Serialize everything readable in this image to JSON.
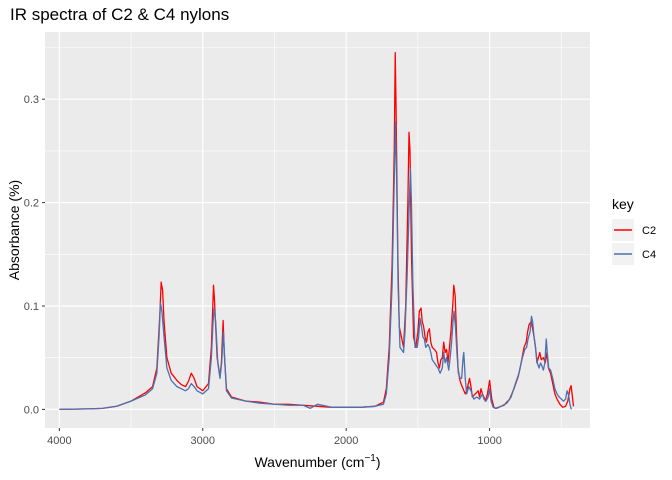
{
  "chart_data": {
    "type": "line",
    "title": "IR spectra of C2 & C4 nylons",
    "xlabel": "Wavenumber (cm",
    "xlabel_superscript": "−1",
    "xlabel_suffix": ")",
    "ylabel": "Absorbance (%)",
    "x_reversed": true,
    "xlim": [
      4100,
      300
    ],
    "ylim": [
      -0.018,
      0.365
    ],
    "x_ticks": [
      4000,
      3000,
      2000,
      1000
    ],
    "x_tick_labels": [
      "4000",
      "3000",
      "2000",
      "1000"
    ],
    "x_minor_ticks": [
      3500,
      2500,
      1500,
      500
    ],
    "y_ticks": [
      0.0,
      0.1,
      0.2,
      0.3
    ],
    "y_tick_labels": [
      "0.0",
      "0.1",
      "0.2",
      "0.3"
    ],
    "y_minor_ticks": [
      0.05,
      0.15,
      0.25,
      0.35
    ],
    "grid": true,
    "legend": {
      "title": "key",
      "position": "right"
    },
    "colors": {
      "panel": "#EBEBEB",
      "grid": "#FFFFFF",
      "axis_text": "#4D4D4D"
    },
    "series": [
      {
        "name": "C2",
        "color": "#FF0000",
        "points": [
          [
            4000,
            0.0
          ],
          [
            3800,
            0.0005
          ],
          [
            3700,
            0.001
          ],
          [
            3600,
            0.003
          ],
          [
            3500,
            0.008
          ],
          [
            3450,
            0.012
          ],
          [
            3400,
            0.016
          ],
          [
            3350,
            0.022
          ],
          [
            3320,
            0.04
          ],
          [
            3300,
            0.09
          ],
          [
            3290,
            0.123
          ],
          [
            3280,
            0.115
          ],
          [
            3270,
            0.085
          ],
          [
            3250,
            0.05
          ],
          [
            3220,
            0.035
          ],
          [
            3180,
            0.028
          ],
          [
            3150,
            0.024
          ],
          [
            3120,
            0.022
          ],
          [
            3100,
            0.027
          ],
          [
            3080,
            0.035
          ],
          [
            3060,
            0.03
          ],
          [
            3040,
            0.022
          ],
          [
            3000,
            0.018
          ],
          [
            2960,
            0.025
          ],
          [
            2940,
            0.06
          ],
          [
            2930,
            0.1
          ],
          [
            2925,
            0.12
          ],
          [
            2918,
            0.105
          ],
          [
            2900,
            0.05
          ],
          [
            2880,
            0.032
          ],
          [
            2870,
            0.045
          ],
          [
            2858,
            0.086
          ],
          [
            2850,
            0.055
          ],
          [
            2835,
            0.02
          ],
          [
            2800,
            0.012
          ],
          [
            2700,
            0.008
          ],
          [
            2600,
            0.007
          ],
          [
            2500,
            0.005
          ],
          [
            2400,
            0.005
          ],
          [
            2300,
            0.004
          ],
          [
            2200,
            0.003
          ],
          [
            2100,
            0.002
          ],
          [
            2000,
            0.002
          ],
          [
            1900,
            0.002
          ],
          [
            1800,
            0.003
          ],
          [
            1740,
            0.007
          ],
          [
            1720,
            0.02
          ],
          [
            1700,
            0.06
          ],
          [
            1680,
            0.14
          ],
          [
            1665,
            0.25
          ],
          [
            1658,
            0.345
          ],
          [
            1652,
            0.29
          ],
          [
            1640,
            0.15
          ],
          [
            1630,
            0.08
          ],
          [
            1600,
            0.06
          ],
          [
            1585,
            0.1
          ],
          [
            1570,
            0.2
          ],
          [
            1562,
            0.268
          ],
          [
            1555,
            0.25
          ],
          [
            1545,
            0.15
          ],
          [
            1530,
            0.07
          ],
          [
            1515,
            0.06
          ],
          [
            1500,
            0.075
          ],
          [
            1490,
            0.095
          ],
          [
            1478,
            0.098
          ],
          [
            1470,
            0.085
          ],
          [
            1460,
            0.08
          ],
          [
            1450,
            0.07
          ],
          [
            1440,
            0.065
          ],
          [
            1430,
            0.075
          ],
          [
            1420,
            0.078
          ],
          [
            1410,
            0.065
          ],
          [
            1400,
            0.06
          ],
          [
            1385,
            0.058
          ],
          [
            1370,
            0.055
          ],
          [
            1360,
            0.045
          ],
          [
            1350,
            0.04
          ],
          [
            1340,
            0.048
          ],
          [
            1330,
            0.05
          ],
          [
            1320,
            0.065
          ],
          [
            1310,
            0.055
          ],
          [
            1300,
            0.058
          ],
          [
            1290,
            0.045
          ],
          [
            1280,
            0.06
          ],
          [
            1270,
            0.075
          ],
          [
            1255,
            0.105
          ],
          [
            1250,
            0.12
          ],
          [
            1240,
            0.11
          ],
          [
            1230,
            0.07
          ],
          [
            1220,
            0.04
          ],
          [
            1210,
            0.03
          ],
          [
            1200,
            0.025
          ],
          [
            1185,
            0.02
          ],
          [
            1170,
            0.015
          ],
          [
            1160,
            0.018
          ],
          [
            1140,
            0.03
          ],
          [
            1130,
            0.022
          ],
          [
            1120,
            0.012
          ],
          [
            1100,
            0.015
          ],
          [
            1080,
            0.018
          ],
          [
            1070,
            0.012
          ],
          [
            1060,
            0.02
          ],
          [
            1050,
            0.015
          ],
          [
            1040,
            0.012
          ],
          [
            1030,
            0.008
          ],
          [
            1015,
            0.015
          ],
          [
            1000,
            0.028
          ],
          [
            985,
            0.01
          ],
          [
            970,
            0.002
          ],
          [
            960,
            0.001
          ],
          [
            940,
            0.002
          ],
          [
            900,
            0.004
          ],
          [
            860,
            0.01
          ],
          [
            830,
            0.02
          ],
          [
            800,
            0.032
          ],
          [
            780,
            0.045
          ],
          [
            760,
            0.06
          ],
          [
            745,
            0.065
          ],
          [
            735,
            0.075
          ],
          [
            725,
            0.082
          ],
          [
            710,
            0.085
          ],
          [
            700,
            0.078
          ],
          [
            690,
            0.07
          ],
          [
            680,
            0.06
          ],
          [
            670,
            0.045
          ],
          [
            660,
            0.05
          ],
          [
            650,
            0.055
          ],
          [
            640,
            0.048
          ],
          [
            625,
            0.05
          ],
          [
            612,
            0.045
          ],
          [
            600,
            0.055
          ],
          [
            590,
            0.04
          ],
          [
            575,
            0.035
          ],
          [
            560,
            0.025
          ],
          [
            545,
            0.015
          ],
          [
            530,
            0.01
          ],
          [
            510,
            0.005
          ],
          [
            490,
            0.002
          ],
          [
            470,
            0.003
          ],
          [
            455,
            0.008
          ],
          [
            440,
            0.02
          ],
          [
            432,
            0.023
          ],
          [
            425,
            0.015
          ],
          [
            415,
            0.003
          ]
        ]
      },
      {
        "name": "C4",
        "color": "#4A72B0",
        "points": [
          [
            4000,
            0.0
          ],
          [
            3800,
            0.0005
          ],
          [
            3700,
            0.001
          ],
          [
            3600,
            0.003
          ],
          [
            3500,
            0.008
          ],
          [
            3450,
            0.011
          ],
          [
            3400,
            0.014
          ],
          [
            3350,
            0.02
          ],
          [
            3320,
            0.035
          ],
          [
            3305,
            0.07
          ],
          [
            3295,
            0.103
          ],
          [
            3285,
            0.095
          ],
          [
            3270,
            0.07
          ],
          [
            3250,
            0.04
          ],
          [
            3220,
            0.028
          ],
          [
            3180,
            0.022
          ],
          [
            3150,
            0.02
          ],
          [
            3120,
            0.018
          ],
          [
            3100,
            0.02
          ],
          [
            3080,
            0.025
          ],
          [
            3060,
            0.022
          ],
          [
            3040,
            0.018
          ],
          [
            3000,
            0.015
          ],
          [
            2960,
            0.02
          ],
          [
            2940,
            0.05
          ],
          [
            2928,
            0.085
          ],
          [
            2920,
            0.098
          ],
          [
            2910,
            0.085
          ],
          [
            2895,
            0.045
          ],
          [
            2880,
            0.03
          ],
          [
            2868,
            0.045
          ],
          [
            2856,
            0.075
          ],
          [
            2848,
            0.05
          ],
          [
            2835,
            0.018
          ],
          [
            2800,
            0.011
          ],
          [
            2700,
            0.008
          ],
          [
            2600,
            0.006
          ],
          [
            2500,
            0.005
          ],
          [
            2400,
            0.004
          ],
          [
            2300,
            0.004
          ],
          [
            2250,
            0.001
          ],
          [
            2200,
            0.005
          ],
          [
            2100,
            0.002
          ],
          [
            2000,
            0.002
          ],
          [
            1900,
            0.002
          ],
          [
            1800,
            0.003
          ],
          [
            1740,
            0.005
          ],
          [
            1720,
            0.015
          ],
          [
            1700,
            0.05
          ],
          [
            1680,
            0.12
          ],
          [
            1665,
            0.22
          ],
          [
            1656,
            0.278
          ],
          [
            1648,
            0.22
          ],
          [
            1638,
            0.12
          ],
          [
            1625,
            0.06
          ],
          [
            1600,
            0.055
          ],
          [
            1590,
            0.075
          ],
          [
            1575,
            0.13
          ],
          [
            1560,
            0.2
          ],
          [
            1552,
            0.233
          ],
          [
            1545,
            0.2
          ],
          [
            1535,
            0.12
          ],
          [
            1520,
            0.06
          ],
          [
            1505,
            0.06
          ],
          [
            1495,
            0.07
          ],
          [
            1485,
            0.088
          ],
          [
            1475,
            0.08
          ],
          [
            1465,
            0.07
          ],
          [
            1455,
            0.068
          ],
          [
            1445,
            0.06
          ],
          [
            1430,
            0.063
          ],
          [
            1420,
            0.06
          ],
          [
            1410,
            0.055
          ],
          [
            1400,
            0.048
          ],
          [
            1385,
            0.045
          ],
          [
            1370,
            0.042
          ],
          [
            1360,
            0.04
          ],
          [
            1345,
            0.035
          ],
          [
            1330,
            0.04
          ],
          [
            1320,
            0.055
          ],
          [
            1310,
            0.045
          ],
          [
            1300,
            0.05
          ],
          [
            1285,
            0.038
          ],
          [
            1275,
            0.05
          ],
          [
            1265,
            0.065
          ],
          [
            1255,
            0.085
          ],
          [
            1248,
            0.095
          ],
          [
            1238,
            0.08
          ],
          [
            1228,
            0.055
          ],
          [
            1218,
            0.035
          ],
          [
            1205,
            0.03
          ],
          [
            1195,
            0.03
          ],
          [
            1185,
            0.05
          ],
          [
            1180,
            0.055
          ],
          [
            1170,
            0.03
          ],
          [
            1160,
            0.015
          ],
          [
            1145,
            0.022
          ],
          [
            1130,
            0.018
          ],
          [
            1110,
            0.01
          ],
          [
            1090,
            0.012
          ],
          [
            1070,
            0.01
          ],
          [
            1050,
            0.015
          ],
          [
            1040,
            0.01
          ],
          [
            1025,
            0.008
          ],
          [
            1010,
            0.012
          ],
          [
            1000,
            0.02
          ],
          [
            990,
            0.008
          ],
          [
            975,
            0.002
          ],
          [
            950,
            0.001
          ],
          [
            920,
            0.003
          ],
          [
            880,
            0.006
          ],
          [
            850,
            0.012
          ],
          [
            820,
            0.025
          ],
          [
            795,
            0.035
          ],
          [
            775,
            0.048
          ],
          [
            755,
            0.058
          ],
          [
            742,
            0.06
          ],
          [
            732,
            0.068
          ],
          [
            718,
            0.075
          ],
          [
            708,
            0.09
          ],
          [
            700,
            0.085
          ],
          [
            690,
            0.07
          ],
          [
            680,
            0.06
          ],
          [
            668,
            0.045
          ],
          [
            655,
            0.04
          ],
          [
            645,
            0.045
          ],
          [
            635,
            0.042
          ],
          [
            625,
            0.038
          ],
          [
            615,
            0.045
          ],
          [
            605,
            0.068
          ],
          [
            598,
            0.055
          ],
          [
            588,
            0.04
          ],
          [
            575,
            0.038
          ],
          [
            560,
            0.03
          ],
          [
            545,
            0.02
          ],
          [
            530,
            0.015
          ],
          [
            515,
            0.012
          ],
          [
            500,
            0.01
          ],
          [
            485,
            0.008
          ],
          [
            470,
            0.01
          ],
          [
            460,
            0.018
          ],
          [
            448,
            0.013
          ],
          [
            440,
            0.005
          ],
          [
            430,
            0.0
          ]
        ]
      }
    ]
  }
}
